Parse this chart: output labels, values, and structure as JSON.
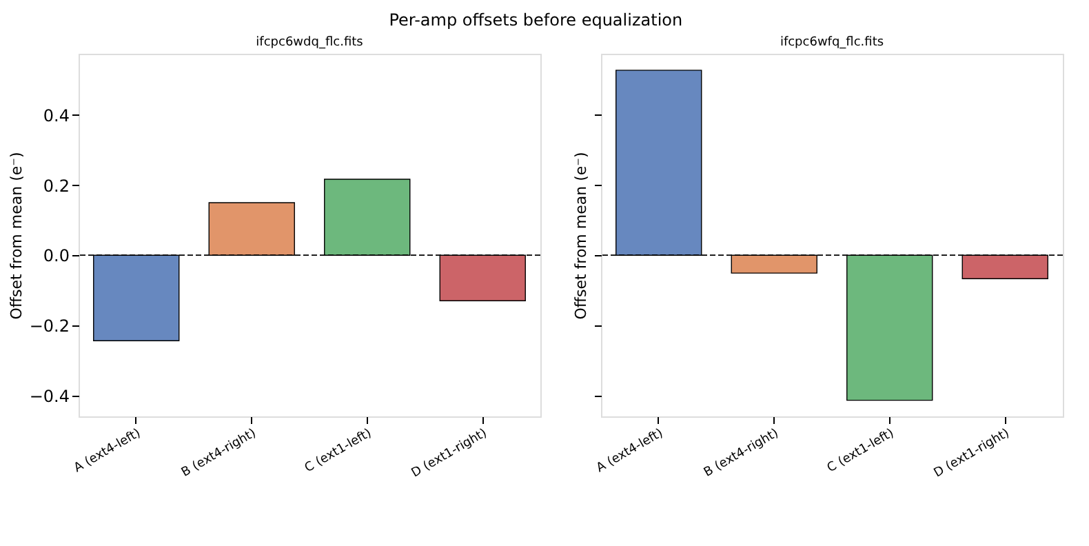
{
  "chart_data": [
    {
      "type": "bar",
      "title": "Per-amp offsets before equalization",
      "subtitle": "ifcpc6wdq_flc.fits",
      "ylabel": "Offset from mean (e⁻)",
      "categories": [
        "A (ext4-left)",
        "B (ext4-right)",
        "C (ext1-left)",
        "D (ext1-right)"
      ],
      "values": [
        -0.244,
        0.15,
        0.217,
        -0.13
      ],
      "colors": [
        "#6788bf",
        "#e1956a",
        "#6db87d",
        "#cc6468"
      ],
      "ylim": [
        -0.46,
        0.575
      ],
      "yticks": [
        {
          "value": -0.4,
          "label": "−0.4"
        },
        {
          "value": -0.2,
          "label": "−0.2"
        },
        {
          "value": 0.0,
          "label": "0.0"
        },
        {
          "value": 0.2,
          "label": "0.2"
        },
        {
          "value": 0.4,
          "label": "0.4"
        }
      ],
      "ref_lines": [
        {
          "axis": "y",
          "value": 0,
          "color": "#000000",
          "line_style": "dashed"
        }
      ],
      "grid": false,
      "legend": false
    },
    {
      "type": "bar",
      "title": "ifcpc6wfq_flc.fits",
      "ylabel": "Offset from mean (e⁻)",
      "categories": [
        "A (ext4-left)",
        "B (ext4-right)",
        "C (ext1-left)",
        "D (ext1-right)"
      ],
      "values": [
        0.528,
        -0.051,
        -0.414,
        -0.067
      ],
      "colors": [
        "#6788bf",
        "#e1956a",
        "#6db87d",
        "#cc6468"
      ],
      "ylim": [
        -0.46,
        0.575
      ],
      "yticks": [
        -0.4,
        -0.2,
        0.0,
        0.2,
        0.4
      ],
      "ref_lines": [
        {
          "axis": "y",
          "value": 0,
          "color": "#000000",
          "line_style": "dashed"
        }
      ],
      "grid": false,
      "legend": false,
      "tick_labels": "x"
    }
  ]
}
